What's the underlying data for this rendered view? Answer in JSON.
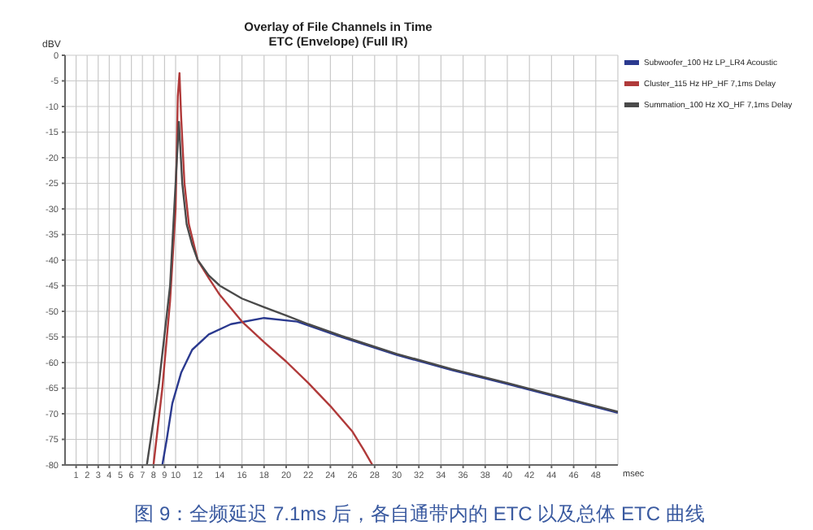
{
  "chart_data": {
    "type": "line",
    "title": "Overlay of File Channels in Time",
    "subtitle": "ETC (Envelope) (Full IR)",
    "xlabel": "msec",
    "ylabel": "dBV",
    "xlim": [
      0,
      50
    ],
    "xticks": [
      1,
      2,
      3,
      4,
      5,
      6,
      7,
      8,
      9,
      10,
      12,
      14,
      16,
      18,
      20,
      22,
      24,
      26,
      28,
      30,
      32,
      34,
      36,
      38,
      40,
      42,
      44,
      46,
      48
    ],
    "ylim": [
      -80,
      0
    ],
    "yticks": [
      -80,
      -75,
      -70,
      -65,
      -60,
      -55,
      -50,
      -45,
      -40,
      -35,
      -30,
      -25,
      -20,
      -15,
      -10,
      -5,
      0
    ],
    "grid": true,
    "legend": "top right",
    "series": [
      {
        "name": "Subwoofer_100 Hz LP_LR4 Acoustic",
        "color": "#2b3a8f",
        "x": [
          8.8,
          9.2,
          9.7,
          10.5,
          11.5,
          13,
          15,
          18,
          21,
          23,
          25,
          30,
          35,
          40,
          45,
          50
        ],
        "values": [
          -80,
          -75,
          -68,
          -62,
          -57.5,
          -54.5,
          -52.5,
          -51.3,
          -52,
          -53.5,
          -55,
          -58.5,
          -61.5,
          -64.2,
          -67,
          -69.8
        ]
      },
      {
        "name": "Cluster_115 Hz HP_HF 7,1ms Delay",
        "color": "#b03a3a",
        "x": [
          8,
          8.8,
          9.5,
          10,
          10.2,
          10.35,
          10.5,
          10.8,
          11.2,
          12,
          13,
          14,
          16,
          18,
          20,
          22,
          24,
          26,
          27,
          27.8
        ],
        "values": [
          -80,
          -65,
          -48,
          -30,
          -8,
          -3.5,
          -12,
          -25,
          -33,
          -40,
          -43.5,
          -46.8,
          -52,
          -56,
          -59.8,
          -64,
          -68.5,
          -73.5,
          -77,
          -80
        ]
      },
      {
        "name": "Summation_100 Hz XO_HF 7,1ms Delay",
        "color": "#4a4a4a",
        "x": [
          7.4,
          8.5,
          9.5,
          10,
          10.3,
          10.6,
          11,
          11.5,
          12,
          13,
          14,
          16,
          18,
          20,
          22,
          25,
          30,
          35,
          40,
          45,
          50
        ],
        "values": [
          -80,
          -64,
          -45,
          -25,
          -13,
          -25,
          -33,
          -37,
          -40,
          -43,
          -45,
          -47.5,
          -49.2,
          -50.8,
          -52.5,
          -54.8,
          -58.3,
          -61.3,
          -64,
          -66.8,
          -69.6
        ]
      }
    ],
    "annotations": [
      "图 9：全频延迟 7.1ms 后，各自通带内的 ETC 以及总体 ETC 曲线"
    ]
  }
}
